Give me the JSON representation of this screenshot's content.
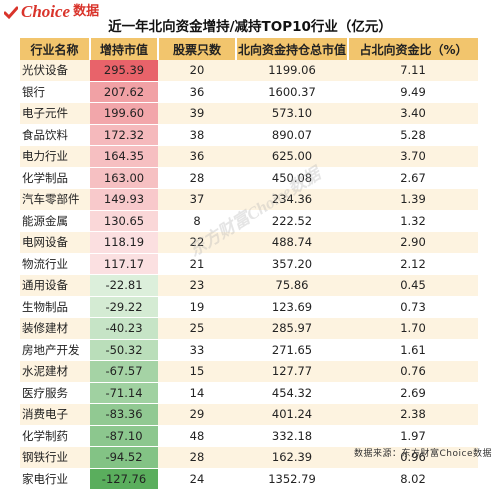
{
  "logo": {
    "brand": "Choice",
    "cn": "数据"
  },
  "title": "近一年北向资金增持/减持TOP10行业（亿元）",
  "headers": [
    "行业名称",
    "增持市值",
    "股票只数",
    "北向资金持仓总市值",
    "占北向资金比（%）"
  ],
  "colors": {
    "header_bg": "#f2c56d",
    "positive_strong": "#e8636a",
    "positive_weak": "#fbe0e1",
    "negative_weak": "#dcefdb",
    "negative_strong": "#5aae5d"
  },
  "rows": [
    {
      "name": "光伏设备",
      "value": "295.39",
      "count": "20",
      "holding": "1199.06",
      "pct": "7.11"
    },
    {
      "name": "银行",
      "value": "207.62",
      "count": "36",
      "holding": "1600.37",
      "pct": "9.49"
    },
    {
      "name": "电子元件",
      "value": "199.60",
      "count": "39",
      "holding": "573.10",
      "pct": "3.40"
    },
    {
      "name": "食品饮料",
      "value": "172.32",
      "count": "38",
      "holding": "890.07",
      "pct": "5.28"
    },
    {
      "name": "电力行业",
      "value": "164.35",
      "count": "36",
      "holding": "625.00",
      "pct": "3.70"
    },
    {
      "name": "化学制品",
      "value": "163.00",
      "count": "28",
      "holding": "450.08",
      "pct": "2.67"
    },
    {
      "name": "汽车零部件",
      "value": "149.93",
      "count": "37",
      "holding": "234.36",
      "pct": "1.39"
    },
    {
      "name": "能源金属",
      "value": "130.65",
      "count": "8",
      "holding": "222.52",
      "pct": "1.32"
    },
    {
      "name": "电网设备",
      "value": "118.19",
      "count": "22",
      "holding": "488.74",
      "pct": "2.90"
    },
    {
      "name": "物流行业",
      "value": "117.17",
      "count": "21",
      "holding": "357.20",
      "pct": "2.12"
    },
    {
      "name": "通用设备",
      "value": "-22.81",
      "count": "23",
      "holding": "75.86",
      "pct": "0.45"
    },
    {
      "name": "生物制品",
      "value": "-29.22",
      "count": "19",
      "holding": "123.69",
      "pct": "0.73"
    },
    {
      "name": "装修建材",
      "value": "-40.23",
      "count": "25",
      "holding": "285.97",
      "pct": "1.70"
    },
    {
      "name": "房地产开发",
      "value": "-50.32",
      "count": "33",
      "holding": "271.65",
      "pct": "1.61"
    },
    {
      "name": "水泥建材",
      "value": "-67.57",
      "count": "15",
      "holding": "127.77",
      "pct": "0.76"
    },
    {
      "name": "医疗服务",
      "value": "-71.14",
      "count": "14",
      "holding": "454.32",
      "pct": "2.69"
    },
    {
      "name": "消费电子",
      "value": "-83.36",
      "count": "29",
      "holding": "401.24",
      "pct": "2.38"
    },
    {
      "name": "化学制药",
      "value": "-87.10",
      "count": "48",
      "holding": "332.18",
      "pct": "1.97"
    },
    {
      "name": "钢铁行业",
      "value": "-94.52",
      "count": "28",
      "holding": "162.39",
      "pct": "0.96"
    },
    {
      "name": "家电行业",
      "value": "-127.76",
      "count": "24",
      "holding": "1352.79",
      "pct": "8.02"
    }
  ],
  "watermark": "东方财富Choice数据",
  "source": "数据来源：东方财富Choice数据"
}
